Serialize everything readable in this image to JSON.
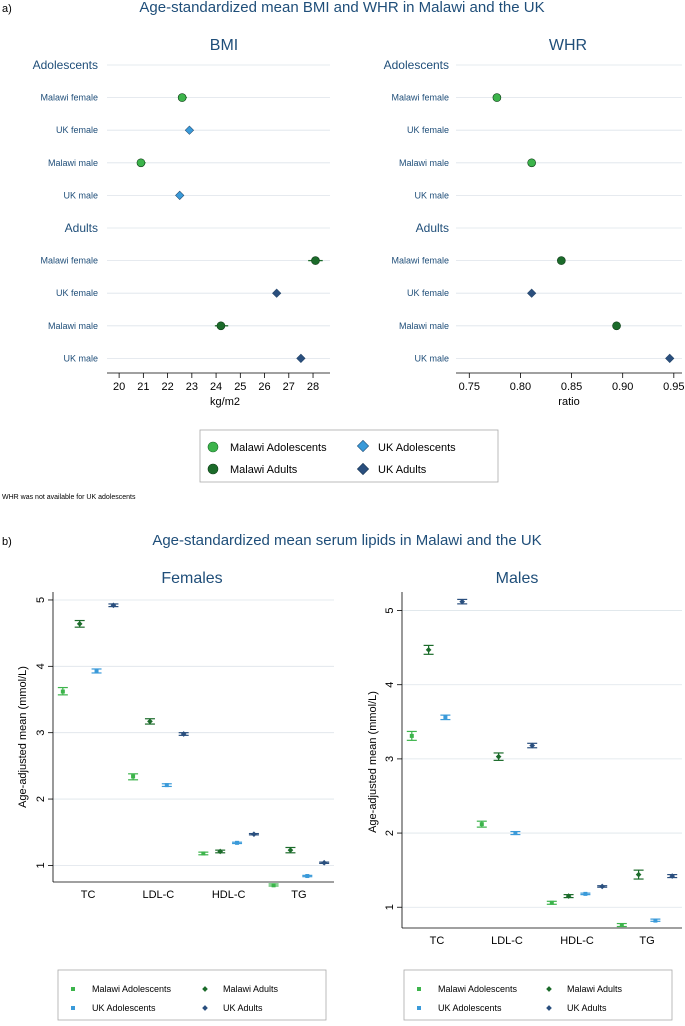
{
  "colors": {
    "malawi_adolescents": "#3cb44b",
    "malawi_adults": "#1b6b2a",
    "uk_adolescents": "#3a9ad9",
    "uk_adults": "#2a4f7e",
    "title_blue": "#1f4e79",
    "grid": "#dde4ea"
  },
  "panel_a": {
    "label": "a)",
    "title": "Age-standardized mean BMI and WHR in Malawi and the UK",
    "note": "WHR was not available for UK adolescents",
    "legend": {
      "items": [
        {
          "label": "Malawi Adolescents",
          "series": "malawi_adolescents",
          "marker": "circle"
        },
        {
          "label": "UK Adolescents",
          "series": "uk_adolescents",
          "marker": "diamond"
        },
        {
          "label": "Malawi Adults",
          "series": "malawi_adults",
          "marker": "circle"
        },
        {
          "label": "UK Adults",
          "series": "uk_adults",
          "marker": "diamond"
        }
      ]
    }
  },
  "panel_b": {
    "label": "b)",
    "title": "Age-standardized mean serum lipids in Malawi and the UK",
    "legend": {
      "items": [
        {
          "label": "Malawi Adolescents",
          "series": "malawi_adolescents",
          "marker": "square"
        },
        {
          "label": "Malawi Adults",
          "series": "malawi_adults",
          "marker": "diamond"
        },
        {
          "label": "UK Adolescents",
          "series": "uk_adolescents",
          "marker": "square"
        },
        {
          "label": "UK Adults",
          "series": "uk_adults",
          "marker": "diamond"
        }
      ]
    }
  },
  "chart_data": [
    {
      "type": "scatter",
      "title": "BMI",
      "xlabel": "kg/m2",
      "xlim": [
        19.5,
        28.7
      ],
      "xticks": [
        20,
        21,
        22,
        23,
        24,
        25,
        26,
        27,
        28
      ],
      "groups": [
        "Adolescents",
        "Adults"
      ],
      "rows": [
        {
          "group": "Adolescents",
          "label": "Malawi female",
          "series": "malawi_adolescents",
          "marker": "circle",
          "value": 22.6,
          "ci": [
            22.45,
            22.8
          ]
        },
        {
          "group": "Adolescents",
          "label": "UK female",
          "series": "uk_adolescents",
          "marker": "diamond",
          "value": 22.9,
          "ci": [
            22.8,
            23.0
          ]
        },
        {
          "group": "Adolescents",
          "label": "Malawi male",
          "series": "malawi_adolescents",
          "marker": "circle",
          "value": 20.9,
          "ci": [
            20.75,
            21.1
          ]
        },
        {
          "group": "Adolescents",
          "label": "UK male",
          "series": "uk_adolescents",
          "marker": "diamond",
          "value": 22.5,
          "ci": [
            22.4,
            22.6
          ]
        },
        {
          "group": "Adults",
          "label": "Malawi female",
          "series": "malawi_adults",
          "marker": "circle",
          "value": 28.1,
          "ci": [
            27.8,
            28.4
          ]
        },
        {
          "group": "Adults",
          "label": "UK female",
          "series": "uk_adults",
          "marker": "diamond",
          "value": 26.5,
          "ci": [
            26.45,
            26.6
          ]
        },
        {
          "group": "Adults",
          "label": "Malawi male",
          "series": "malawi_adults",
          "marker": "circle",
          "value": 24.2,
          "ci": [
            23.95,
            24.5
          ]
        },
        {
          "group": "Adults",
          "label": "UK male",
          "series": "uk_adults",
          "marker": "diamond",
          "value": 27.5,
          "ci": [
            27.45,
            27.55
          ]
        }
      ]
    },
    {
      "type": "scatter",
      "title": "WHR",
      "xlabel": "ratio",
      "xlim": [
        0.737,
        0.958
      ],
      "xticks": [
        0.75,
        0.8,
        0.85,
        0.9,
        0.95
      ],
      "xtick_labels": [
        "0.75",
        "0.80",
        "0.85",
        "0.90",
        "0.95"
      ],
      "groups": [
        "Adolescents",
        "Adults"
      ],
      "rows": [
        {
          "group": "Adolescents",
          "label": "Malawi female",
          "series": "malawi_adolescents",
          "marker": "circle",
          "value": 0.777,
          "ci": [
            0.774,
            0.78
          ]
        },
        {
          "group": "Adolescents",
          "label": "UK female",
          "series": null,
          "marker": null,
          "value": null,
          "ci": null
        },
        {
          "group": "Adolescents",
          "label": "Malawi male",
          "series": "malawi_adolescents",
          "marker": "circle",
          "value": 0.811,
          "ci": [
            0.808,
            0.814
          ]
        },
        {
          "group": "Adolescents",
          "label": "UK male",
          "series": null,
          "marker": null,
          "value": null,
          "ci": null
        },
        {
          "group": "Adults",
          "label": "Malawi female",
          "series": "malawi_adults",
          "marker": "circle",
          "value": 0.84,
          "ci": [
            0.838,
            0.842
          ]
        },
        {
          "group": "Adults",
          "label": "UK female",
          "series": "uk_adults",
          "marker": "diamond",
          "value": 0.811,
          "ci": [
            0.81,
            0.812
          ]
        },
        {
          "group": "Adults",
          "label": "Malawi male",
          "series": "malawi_adults",
          "marker": "circle",
          "value": 0.894,
          "ci": [
            0.89,
            0.898
          ]
        },
        {
          "group": "Adults",
          "label": "UK male",
          "series": "uk_adults",
          "marker": "diamond",
          "value": 0.946,
          "ci": [
            0.945,
            0.947
          ]
        }
      ]
    },
    {
      "type": "scatter",
      "title": "Females",
      "ylabel": "Age-adjusted mean (mmol/L)",
      "ylim": [
        0.75,
        5.12
      ],
      "yticks": [
        1,
        2,
        3,
        4,
        5
      ],
      "categories": [
        "TC",
        "LDL-C",
        "HDL-C",
        "TG"
      ],
      "series": [
        {
          "name": "Malawi Adolescents",
          "key": "malawi_adolescents",
          "marker": "square",
          "values": [
            3.62,
            2.34,
            1.18,
            0.7
          ],
          "ci": [
            [
              3.57,
              3.68
            ],
            [
              2.29,
              2.38
            ],
            [
              1.16,
              1.2
            ],
            [
              0.69,
              0.72
            ]
          ]
        },
        {
          "name": "Malawi Adults",
          "key": "malawi_adults",
          "marker": "diamond",
          "values": [
            4.64,
            3.17,
            1.21,
            1.23
          ],
          "ci": [
            [
              4.59,
              4.69
            ],
            [
              3.13,
              3.21
            ],
            [
              1.19,
              1.23
            ],
            [
              1.19,
              1.27
            ]
          ]
        },
        {
          "name": "UK Adolescents",
          "key": "uk_adolescents",
          "marker": "square",
          "values": [
            3.93,
            2.21,
            1.34,
            0.84
          ],
          "ci": [
            [
              3.9,
              3.96
            ],
            [
              2.19,
              2.23
            ],
            [
              1.33,
              1.35
            ],
            [
              0.83,
              0.85
            ]
          ]
        },
        {
          "name": "UK Adults",
          "key": "uk_adults",
          "marker": "diamond",
          "values": [
            4.92,
            2.98,
            1.47,
            1.04
          ],
          "ci": [
            [
              4.9,
              4.94
            ],
            [
              2.96,
              3.0
            ],
            [
              1.46,
              1.48
            ],
            [
              1.03,
              1.05
            ]
          ]
        }
      ]
    },
    {
      "type": "scatter",
      "title": "Males",
      "ylabel": "Age-adjusted mean (mmol/L)",
      "ylim": [
        0.72,
        5.25
      ],
      "yticks": [
        1,
        2,
        3,
        4,
        5
      ],
      "categories": [
        "TC",
        "LDL-C",
        "HDL-C",
        "TG"
      ],
      "series": [
        {
          "name": "Malawi Adolescents",
          "key": "malawi_adolescents",
          "marker": "square",
          "values": [
            3.31,
            2.12,
            1.06,
            0.76
          ],
          "ci": [
            [
              3.25,
              3.37
            ],
            [
              2.08,
              2.16
            ],
            [
              1.04,
              1.08
            ],
            [
              0.74,
              0.78
            ]
          ]
        },
        {
          "name": "Malawi Adults",
          "key": "malawi_adults",
          "marker": "diamond",
          "values": [
            4.47,
            3.03,
            1.15,
            1.44
          ],
          "ci": [
            [
              4.41,
              4.53
            ],
            [
              2.98,
              3.08
            ],
            [
              1.13,
              1.17
            ],
            [
              1.38,
              1.5
            ]
          ]
        },
        {
          "name": "UK Adolescents",
          "key": "uk_adolescents",
          "marker": "square",
          "values": [
            3.56,
            2.0,
            1.18,
            0.82
          ],
          "ci": [
            [
              3.53,
              3.59
            ],
            [
              1.98,
              2.02
            ],
            [
              1.17,
              1.19
            ],
            [
              0.81,
              0.84
            ]
          ]
        },
        {
          "name": "UK Adults",
          "key": "uk_adults",
          "marker": "diamond",
          "values": [
            5.12,
            3.18,
            1.28,
            1.42
          ],
          "ci": [
            [
              5.09,
              5.15
            ],
            [
              3.15,
              3.21
            ],
            [
              1.27,
              1.29
            ],
            [
              1.4,
              1.44
            ]
          ]
        }
      ]
    }
  ]
}
